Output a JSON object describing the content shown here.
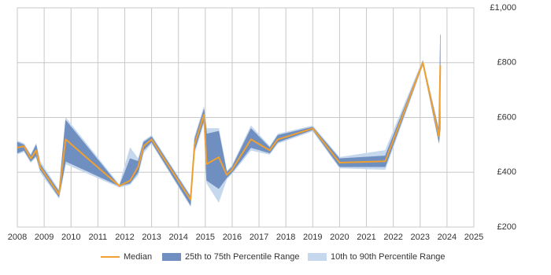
{
  "chart_data": {
    "type": "line",
    "x": [
      2008.0,
      2008.25,
      2008.5,
      2008.7,
      2008.85,
      2009.55,
      2009.8,
      2011.8,
      2012.2,
      2012.5,
      2012.7,
      2013.0,
      2014.45,
      2014.6,
      2014.95,
      2015.05,
      2015.5,
      2015.8,
      2016.0,
      2016.7,
      2017.4,
      2017.7,
      2019.0,
      2020.0,
      2021.7,
      2023.1,
      2023.7,
      2023.75
    ],
    "series": [
      {
        "name": "10th to 90th Percentile Range",
        "color": "#c6d8ed",
        "lower": [
          465,
          475,
          435,
          455,
          400,
          305,
          430,
          345,
          355,
          390,
          470,
          505,
          275,
          470,
          580,
          360,
          290,
          375,
          395,
          480,
          465,
          505,
          550,
          415,
          410,
          790,
          505,
          555
        ],
        "upper": [
          515,
          505,
          465,
          505,
          440,
          335,
          600,
          355,
          490,
          450,
          515,
          535,
          315,
          530,
          640,
          560,
          560,
          405,
          425,
          570,
          495,
          540,
          570,
          455,
          480,
          810,
          555,
          905
        ]
      },
      {
        "name": "25th to 75th Percentile Range",
        "color": "#6f8fc0",
        "lower": [
          470,
          480,
          440,
          460,
          410,
          310,
          440,
          350,
          360,
          400,
          480,
          510,
          280,
          480,
          590,
          370,
          340,
          380,
          400,
          490,
          470,
          510,
          555,
          420,
          420,
          795,
          510,
          560
        ],
        "upper": [
          510,
          500,
          460,
          500,
          430,
          330,
          590,
          350,
          450,
          440,
          510,
          530,
          310,
          520,
          630,
          540,
          550,
          400,
          420,
          560,
          490,
          535,
          565,
          450,
          460,
          805,
          550,
          900
        ]
      },
      {
        "name": "Median",
        "color": "#f0a030",
        "values": [
          490,
          495,
          450,
          480,
          420,
          320,
          520,
          350,
          370,
          420,
          495,
          520,
          300,
          500,
          610,
          430,
          455,
          390,
          410,
          520,
          480,
          520,
          560,
          435,
          440,
          800,
          530,
          790
        ]
      }
    ],
    "legend_order": [
      2,
      1,
      0
    ],
    "xlim": [
      2008,
      2025
    ],
    "xticks": [
      2008,
      2009,
      2010,
      2011,
      2012,
      2013,
      2014,
      2015,
      2016,
      2017,
      2018,
      2019,
      2020,
      2021,
      2022,
      2023,
      2024,
      2025
    ],
    "ylim": [
      200,
      1000
    ],
    "yticks": [
      {
        "value": 200,
        "label": "£200"
      },
      {
        "value": 400,
        "label": "£400"
      },
      {
        "value": 600,
        "label": "£600"
      },
      {
        "value": 800,
        "label": "£800"
      },
      {
        "value": 1000,
        "label": "£1,000"
      }
    ],
    "grid": true
  }
}
